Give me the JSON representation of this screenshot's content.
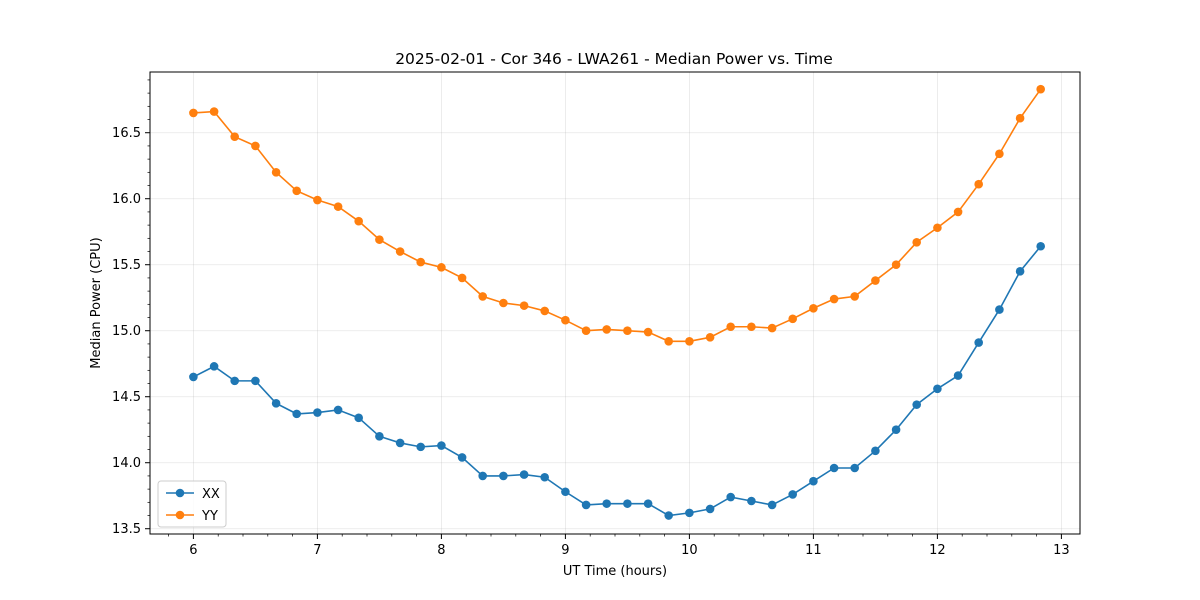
{
  "chart_data": {
    "type": "line",
    "title": "2025-02-01 - Cor 346 - LWA261 - Median Power vs. Time",
    "xlabel": "UT Time (hours)",
    "ylabel": "Median Power (CPU)",
    "xlim": [
      5.65,
      13.15
    ],
    "ylim": [
      13.46,
      16.96
    ],
    "xticks": [
      6,
      7,
      8,
      9,
      10,
      11,
      12,
      13
    ],
    "yticks": [
      13.5,
      14.0,
      14.5,
      15.0,
      15.5,
      16.0,
      16.5
    ],
    "grid": true,
    "legend_position": "lower-left",
    "x": [
      6.0,
      6.167,
      6.333,
      6.5,
      6.667,
      6.833,
      7.0,
      7.167,
      7.333,
      7.5,
      7.667,
      7.833,
      8.0,
      8.167,
      8.333,
      8.5,
      8.667,
      8.833,
      9.0,
      9.167,
      9.333,
      9.5,
      9.667,
      9.833,
      10.0,
      10.167,
      10.333,
      10.5,
      10.667,
      10.833,
      11.0,
      11.167,
      11.333,
      11.5,
      11.667,
      11.833,
      12.0,
      12.167,
      12.333,
      12.5,
      12.667,
      12.833
    ],
    "series": [
      {
        "name": "XX",
        "color": "#1f77b4",
        "values": [
          14.65,
          14.73,
          14.62,
          14.62,
          14.45,
          14.37,
          14.38,
          14.4,
          14.34,
          14.2,
          14.15,
          14.12,
          14.13,
          14.04,
          13.9,
          13.9,
          13.91,
          13.89,
          13.78,
          13.68,
          13.69,
          13.69,
          13.69,
          13.6,
          13.62,
          13.65,
          13.74,
          13.71,
          13.68,
          13.76,
          13.86,
          13.96,
          13.96,
          14.09,
          14.25,
          14.44,
          14.56,
          14.66,
          14.91,
          15.16,
          15.45,
          15.64
        ]
      },
      {
        "name": "YY",
        "color": "#ff7f0e",
        "values": [
          16.65,
          16.66,
          16.47,
          16.4,
          16.2,
          16.06,
          15.99,
          15.94,
          15.83,
          15.69,
          15.6,
          15.52,
          15.48,
          15.4,
          15.26,
          15.21,
          15.19,
          15.15,
          15.08,
          15.0,
          15.01,
          15.0,
          14.99,
          14.92,
          14.92,
          14.95,
          15.03,
          15.03,
          15.02,
          15.09,
          15.17,
          15.24,
          15.26,
          15.38,
          15.5,
          15.67,
          15.78,
          15.9,
          16.11,
          16.34,
          16.61,
          16.83
        ]
      }
    ]
  }
}
